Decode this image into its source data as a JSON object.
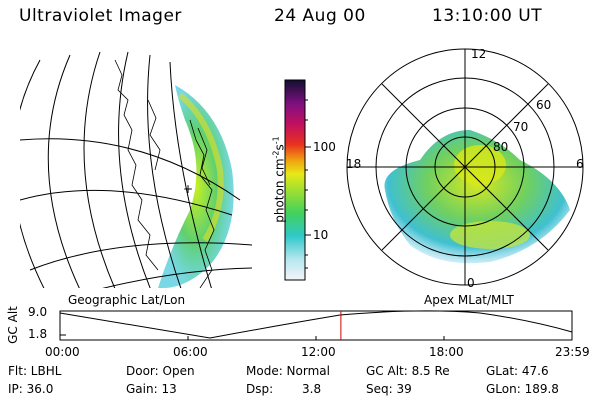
{
  "header": {
    "instrument": "Ultraviolet Imager",
    "date": "24 Aug 00",
    "time": "13:10:00 UT"
  },
  "geo_panel": {
    "label": "Geographic Lat/Lon"
  },
  "colorbar": {
    "unit_label": "photon cm",
    "unit_exp1": "-2",
    "unit_mid": "s",
    "unit_exp2": "-1",
    "tick_high": "100",
    "tick_low": "10"
  },
  "polar_panel": {
    "label": "Apex MLat/MLT",
    "mlt_top": "12",
    "mlt_left": "18",
    "mlt_right": "6",
    "mlt_bottom": "0",
    "lat_60": "60",
    "lat_70": "70",
    "lat_80": "80"
  },
  "alt_strip": {
    "ylabel": "GC Alt",
    "ytick_high": "9.0",
    "ytick_low": "1.8",
    "time_ticks": [
      "00:00",
      "06:00",
      "12:00",
      "18:00",
      "23:59"
    ],
    "marker_time_hours": 13.1667
  },
  "info": {
    "flt": "Flt: LBHL",
    "ip": "IP: 36.0",
    "door": "Door: Open",
    "gain": "Gain: 13",
    "mode": "Mode: Normal",
    "dsp_label": "Dsp:",
    "dsp_value": "3.8",
    "gc_alt": "GC Alt: 8.5 Re",
    "seq": "Seq: 39",
    "glat": "GLat: 47.6",
    "glon": "GLon: 189.8"
  }
}
